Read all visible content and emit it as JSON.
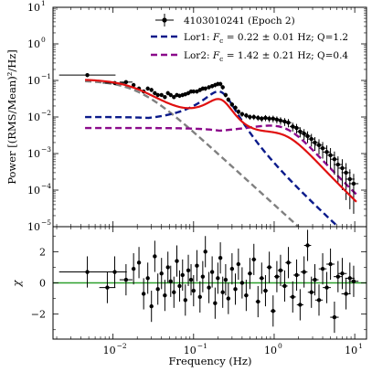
{
  "chart_data": [
    {
      "type": "line",
      "panel": "power spectrum",
      "x_scale": "log",
      "y_scale": "log",
      "xlim": [
        0.0018,
        14
      ],
      "ylim": [
        1e-05,
        10
      ],
      "ylabel": "Power [(RMS/Mean)²/Hz]",
      "x_ticks": [
        {
          "value": 0.01,
          "base": "10",
          "exp": "−2"
        },
        {
          "value": 0.1,
          "base": "10",
          "exp": "−1"
        },
        {
          "value": 1,
          "base": "10",
          "exp": "0"
        },
        {
          "value": 10,
          "base": "10",
          "exp": "1"
        }
      ],
      "y_ticks": [
        {
          "value": 1e-05,
          "base": "10",
          "exp": "−5"
        },
        {
          "value": 0.0001,
          "base": "10",
          "exp": "−4"
        },
        {
          "value": 0.001,
          "base": "10",
          "exp": "−3"
        },
        {
          "value": 0.01,
          "base": "10",
          "exp": "−2"
        },
        {
          "value": 0.1,
          "base": "10",
          "exp": "−1"
        },
        {
          "value": 1,
          "base": "10",
          "exp": "0"
        },
        {
          "value": 10,
          "base": "10",
          "exp": "1"
        }
      ],
      "legend_position": "top-right",
      "legend": [
        {
          "id": "data",
          "text": "4103010241 (Epoch 2)",
          "color": "#000000",
          "style": "errorbar"
        },
        {
          "id": "lor1",
          "pre": "Lor1:  ",
          "italic": "F",
          "sub": "c",
          "post": " = 0.22 ± 0.01 Hz; Q=1.2",
          "color": "#0a1a8a",
          "style": "dashed"
        },
        {
          "id": "lor2",
          "pre": "Lor2:  ",
          "italic": "F",
          "sub": "c",
          "post": " = 1.42 ± 0.21 Hz; Q=0.4",
          "color": "#8b0a8b",
          "style": "dashed"
        }
      ],
      "components": {
        "zero_centred": {
          "amplitude": 0.1,
          "width_hz": 0.02,
          "color": "#808080"
        },
        "lor1": {
          "amplitude": 0.05,
          "fc_hz": 0.22,
          "q": 1.2,
          "floor": 0.01,
          "color": "#0a1a8a"
        },
        "lor2": {
          "amplitude": 0.0058,
          "fc_hz": 1.42,
          "q": 0.4,
          "floor": 0.005,
          "color": "#8b0a8b"
        },
        "total_model_color": "#e01010"
      },
      "data_points": {
        "x": [
          0.0048,
          0.0105,
          0.0145,
          0.018,
          0.021,
          0.024,
          0.027,
          0.03,
          0.033,
          0.036,
          0.04,
          0.044,
          0.048,
          0.052,
          0.057,
          0.062,
          0.067,
          0.073,
          0.079,
          0.086,
          0.093,
          0.1,
          0.11,
          0.12,
          0.13,
          0.14,
          0.155,
          0.17,
          0.185,
          0.2,
          0.215,
          0.23,
          0.25,
          0.27,
          0.3,
          0.33,
          0.36,
          0.4,
          0.45,
          0.5,
          0.56,
          0.63,
          0.7,
          0.78,
          0.87,
          0.97,
          1.08,
          1.2,
          1.35,
          1.5,
          1.7,
          1.9,
          2.1,
          2.35,
          2.6,
          2.9,
          3.2,
          3.6,
          4.0,
          4.5,
          5.0,
          5.6,
          6.2,
          7.0,
          7.8,
          8.7,
          9.7
        ],
        "y": [
          0.14,
          0.085,
          0.09,
          0.075,
          0.06,
          0.05,
          0.06,
          0.055,
          0.045,
          0.04,
          0.04,
          0.035,
          0.045,
          0.04,
          0.035,
          0.04,
          0.038,
          0.04,
          0.042,
          0.045,
          0.05,
          0.05,
          0.05,
          0.055,
          0.06,
          0.06,
          0.065,
          0.07,
          0.075,
          0.08,
          0.08,
          0.065,
          0.04,
          0.03,
          0.022,
          0.018,
          0.014,
          0.012,
          0.011,
          0.01,
          0.01,
          0.0095,
          0.009,
          0.0095,
          0.009,
          0.009,
          0.0085,
          0.008,
          0.0075,
          0.007,
          0.0055,
          0.005,
          0.004,
          0.0035,
          0.003,
          0.0025,
          0.002,
          0.0017,
          0.0014,
          0.0011,
          0.0009,
          0.0007,
          0.0005,
          0.0004,
          0.0003,
          0.0002,
          0.00015
        ],
        "x_err_dex": [
          0.35,
          0.15,
          0.08
        ],
        "color": "#000000"
      }
    },
    {
      "type": "scatter",
      "panel": "residuals",
      "x_scale": "log",
      "xlim": [
        0.0018,
        14
      ],
      "ylim": [
        -3.6,
        3.6
      ],
      "xlabel": "Frequency (Hz)",
      "ylabel": "χ",
      "y_ticks": [
        -2,
        0,
        2
      ],
      "x_ticks": [
        {
          "value": 0.01,
          "base": "10",
          "exp": "−2"
        },
        {
          "value": 0.1,
          "base": "10",
          "exp": "−1"
        },
        {
          "value": 1,
          "base": "10",
          "exp": "0"
        },
        {
          "value": 10,
          "base": "10",
          "exp": "1"
        }
      ],
      "zero_line_color": "#2ca02c",
      "residuals": {
        "x": [
          0.0048,
          0.0085,
          0.0105,
          0.0145,
          0.018,
          0.021,
          0.024,
          0.027,
          0.03,
          0.033,
          0.036,
          0.04,
          0.044,
          0.048,
          0.052,
          0.057,
          0.062,
          0.067,
          0.073,
          0.079,
          0.086,
          0.093,
          0.1,
          0.11,
          0.12,
          0.13,
          0.14,
          0.155,
          0.17,
          0.185,
          0.2,
          0.215,
          0.23,
          0.25,
          0.27,
          0.3,
          0.33,
          0.36,
          0.4,
          0.45,
          0.5,
          0.56,
          0.63,
          0.7,
          0.78,
          0.87,
          0.97,
          1.08,
          1.2,
          1.35,
          1.5,
          1.7,
          1.9,
          2.1,
          2.35,
          2.6,
          2.9,
          3.2,
          3.6,
          4.0,
          4.5,
          5.0,
          5.6,
          6.2,
          7.0,
          7.8,
          8.7,
          9.7
        ],
        "y": [
          0.7,
          -0.3,
          0.7,
          0.2,
          0.9,
          1.3,
          -0.7,
          0.3,
          -1.5,
          1.7,
          -0.4,
          0.6,
          -0.8,
          1.0,
          0.1,
          -0.6,
          1.4,
          -0.2,
          0.5,
          -1.1,
          0.8,
          0.2,
          -0.5,
          1.1,
          -0.9,
          0.4,
          2.0,
          -0.3,
          0.7,
          -1.3,
          0.3,
          1.6,
          -0.6,
          0.2,
          -1.0,
          0.9,
          -0.4,
          1.2,
          0.0,
          -0.8,
          0.6,
          1.5,
          -1.2,
          0.3,
          -0.5,
          1.0,
          -1.8,
          0.4,
          0.8,
          -0.2,
          1.3,
          -0.9,
          0.5,
          -1.4,
          0.7,
          2.4,
          -0.6,
          0.2,
          -1.1,
          0.9,
          -0.3,
          1.2,
          -2.2,
          0.4,
          0.6,
          -0.7,
          0.3,
          0.1
        ],
        "x_err_dex": [
          0.35,
          0.1,
          0.15,
          0.08
        ],
        "color": "#000000"
      }
    }
  ]
}
